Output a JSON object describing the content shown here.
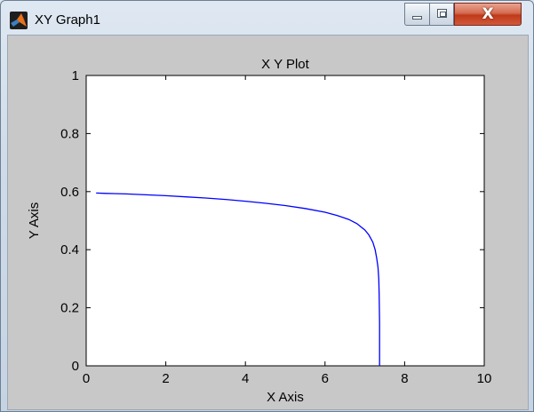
{
  "window": {
    "title": "XY Graph1",
    "buttons": {
      "minimize": "",
      "maximize": "",
      "close": "X"
    }
  },
  "chart_data": {
    "type": "line",
    "title": "X Y Plot",
    "xlabel": "X Axis",
    "ylabel": "Y Axis",
    "xlim": [
      0,
      10
    ],
    "ylim": [
      0,
      1
    ],
    "xticks": [
      "0",
      "2",
      "4",
      "6",
      "8",
      "10"
    ],
    "yticks": [
      "0",
      "0.2",
      "0.4",
      "0.6",
      "0.8",
      "1"
    ],
    "grid": false,
    "series": [
      {
        "color": "#0000ff",
        "x": [
          0.25,
          0.5,
          1.0,
          1.5,
          2.0,
          2.5,
          3.0,
          3.5,
          4.0,
          4.5,
          5.0,
          5.5,
          6.0,
          6.3,
          6.6,
          6.8,
          7.0,
          7.1,
          7.2,
          7.26,
          7.3,
          7.33,
          7.35,
          7.36,
          7.37,
          7.37
        ],
        "y": [
          0.595,
          0.594,
          0.592,
          0.589,
          0.586,
          0.582,
          0.578,
          0.573,
          0.567,
          0.56,
          0.552,
          0.542,
          0.529,
          0.518,
          0.504,
          0.49,
          0.468,
          0.451,
          0.426,
          0.4,
          0.37,
          0.34,
          0.3,
          0.25,
          0.15,
          0.0
        ]
      }
    ]
  }
}
